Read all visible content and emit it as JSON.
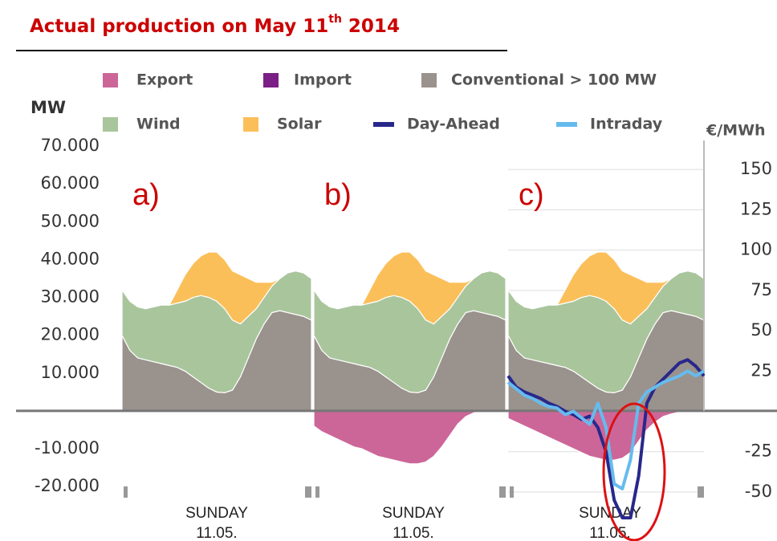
{
  "chart_data": {
    "type": "area",
    "title": {
      "text": "Actual production on May 11",
      "sup": "th",
      "end": " 2014"
    },
    "y_unit": "MW",
    "y2_unit": "€/MWh",
    "ylim": [
      -24000,
      71500
    ],
    "yticks": [
      {
        "value": 70000,
        "label": "70.000"
      },
      {
        "value": 60000,
        "label": "60.000"
      },
      {
        "value": 50000,
        "label": "50.000"
      },
      {
        "value": 40000,
        "label": "40.000"
      },
      {
        "value": 30000,
        "label": "30.000"
      },
      {
        "value": 20000,
        "label": "20.000"
      },
      {
        "value": 10000,
        "label": "10.000"
      },
      {
        "value": -10000,
        "label": "-10.000"
      },
      {
        "value": -20000,
        "label": "-20.000"
      }
    ],
    "y2lim": [
      -56,
      168
    ],
    "y2ticks": [
      150,
      125,
      100,
      75,
      50,
      25,
      -25,
      -50
    ],
    "y2grid": true,
    "xlim": [
      0,
      24
    ],
    "x": [
      0,
      1,
      2,
      3,
      4,
      5,
      6,
      7,
      8,
      9,
      10,
      11,
      12,
      13,
      14,
      15,
      16,
      17,
      18,
      19,
      20,
      21,
      22,
      23,
      24
    ],
    "series": [
      {
        "name": "Export",
        "color": "#cc6699"
      },
      {
        "name": "Import",
        "color": "#7b1f86"
      },
      {
        "name": "Conventional > 100 MW",
        "color": "#9a928c"
      },
      {
        "name": "Wind",
        "color": "#a9c59c"
      },
      {
        "name": "Solar",
        "color": "#fbbf5a"
      },
      {
        "name": "Day-Ahead",
        "color": "#28288a",
        "axis": "y2"
      },
      {
        "name": "Intraday",
        "color": "#66bbee",
        "axis": "y2"
      }
    ],
    "panels": [
      {
        "label": "a)",
        "xlabel": [
          "SUNDAY",
          "11.05."
        ],
        "values": [
          null,
          null,
          [
            20000,
            16000,
            14000,
            13500,
            13000,
            12500,
            12000,
            11500,
            10500,
            9000,
            7500,
            6000,
            5000,
            4800,
            5500,
            9000,
            14000,
            19000,
            23000,
            26000,
            26500,
            26000,
            25500,
            25000,
            24000
          ],
          [
            12000,
            13000,
            13500,
            13500,
            14500,
            15500,
            16000,
            17000,
            18500,
            21000,
            23000,
            24000,
            24000,
            22200,
            18500,
            14000,
            11000,
            8000,
            7000,
            7000,
            8500,
            10500,
            11500,
            11500,
            11000
          ],
          [
            0,
            0,
            0,
            0,
            0,
            0,
            0,
            3500,
            7000,
            9000,
            10500,
            12000,
            13000,
            13000,
            13000,
            13000,
            10000,
            7000,
            4000,
            1000,
            0,
            0,
            0,
            0,
            0
          ],
          null,
          null
        ]
      },
      {
        "label": "b)",
        "xlabel": [
          "SUNDAY",
          "11.05."
        ],
        "values": [
          [
            -4000,
            -5500,
            -6500,
            -7500,
            -8500,
            -9500,
            -10000,
            -11000,
            -12000,
            -12500,
            -13000,
            -13500,
            -14000,
            -14000,
            -13500,
            -12000,
            -9500,
            -6500,
            -3500,
            -1500,
            -500,
            0,
            0,
            0,
            0
          ],
          null,
          [
            20000,
            16000,
            14000,
            13500,
            13000,
            12500,
            12000,
            11500,
            10500,
            9000,
            7500,
            6000,
            5000,
            4800,
            5500,
            9000,
            14000,
            19000,
            23000,
            26000,
            26500,
            26000,
            25500,
            25000,
            24000
          ],
          [
            12000,
            13000,
            13500,
            13500,
            14500,
            15500,
            16000,
            17000,
            18500,
            21000,
            23000,
            24000,
            24000,
            22200,
            18500,
            14000,
            11000,
            8000,
            7000,
            7000,
            8500,
            10500,
            11500,
            11500,
            11000
          ],
          [
            0,
            0,
            0,
            0,
            0,
            0,
            0,
            3500,
            7000,
            9000,
            10500,
            12000,
            13000,
            13000,
            13000,
            13000,
            10000,
            7000,
            4000,
            1000,
            0,
            0,
            0,
            0,
            0
          ],
          null,
          null
        ]
      },
      {
        "label": "c)",
        "xlabel": [
          "SUNDAY",
          "11.05."
        ],
        "values": [
          [
            -2000,
            -3000,
            -4000,
            -5000,
            -6000,
            -7000,
            -8000,
            -9000,
            -10000,
            -11000,
            -12000,
            -12500,
            -13000,
            -13000,
            -12500,
            -11000,
            -8000,
            -5000,
            -3000,
            -1500,
            -800,
            -300,
            0,
            0,
            0
          ],
          null,
          [
            20000,
            16000,
            14000,
            13500,
            13000,
            12500,
            12000,
            11500,
            10500,
            9000,
            7500,
            6000,
            5000,
            4800,
            5500,
            9000,
            14000,
            19000,
            23000,
            26000,
            26500,
            26000,
            25500,
            25000,
            24000
          ],
          [
            12000,
            13000,
            13500,
            13500,
            14500,
            15500,
            16000,
            17000,
            18500,
            21000,
            23000,
            24000,
            24000,
            22200,
            18500,
            14000,
            11000,
            8000,
            7000,
            7000,
            8500,
            10500,
            11500,
            11500,
            11000
          ],
          [
            0,
            0,
            0,
            0,
            0,
            0,
            0,
            3500,
            7000,
            9000,
            10500,
            12000,
            13000,
            13000,
            13000,
            13000,
            10000,
            7000,
            4000,
            1000,
            0,
            0,
            0,
            0,
            0
          ],
          [
            22,
            15,
            12,
            10,
            8,
            5,
            3,
            0,
            -2,
            -5,
            -3,
            -10,
            -25,
            -55,
            -66,
            -66,
            -40,
            5,
            15,
            20,
            25,
            30,
            32,
            28,
            22
          ],
          [
            18,
            14,
            10,
            8,
            5,
            3,
            2,
            -2,
            0,
            -4,
            -8,
            5,
            -10,
            -45,
            -48,
            -30,
            5,
            12,
            15,
            18,
            20,
            22,
            25,
            22,
            25
          ]
        ]
      }
    ]
  }
}
